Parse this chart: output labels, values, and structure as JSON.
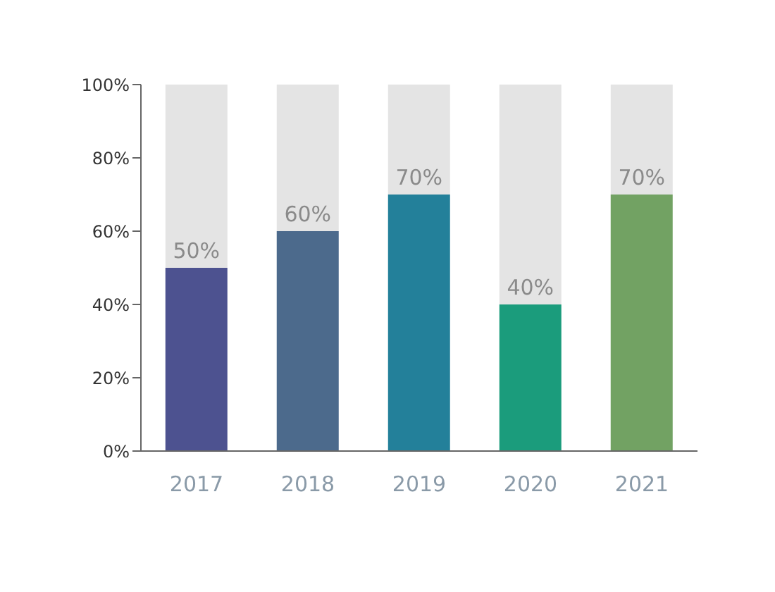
{
  "chart_data": {
    "type": "bar",
    "stacked": true,
    "categories": [
      "2017",
      "2018",
      "2019",
      "2020",
      "2021"
    ],
    "series": [
      {
        "values": [
          50,
          60,
          70,
          40,
          70
        ],
        "colors": [
          "#4d5290",
          "#4c6a8c",
          "#23809a",
          "#1b9c7c",
          "#72a263"
        ],
        "value_labels": [
          "50%",
          "60%",
          "70%",
          "40%",
          "70%"
        ]
      },
      {
        "values": [
          50,
          40,
          30,
          60,
          30
        ],
        "color": "#e4e4e4"
      }
    ],
    "ylim": [
      0,
      100
    ],
    "yticks": [
      {
        "value": 0,
        "label": "0%"
      },
      {
        "value": 20,
        "label": "20%"
      },
      {
        "value": 40,
        "label": "40%"
      },
      {
        "value": 60,
        "label": "60%"
      },
      {
        "value": 80,
        "label": "80%"
      },
      {
        "value": 100,
        "label": "100%"
      }
    ],
    "grid": false,
    "legend": false
  }
}
